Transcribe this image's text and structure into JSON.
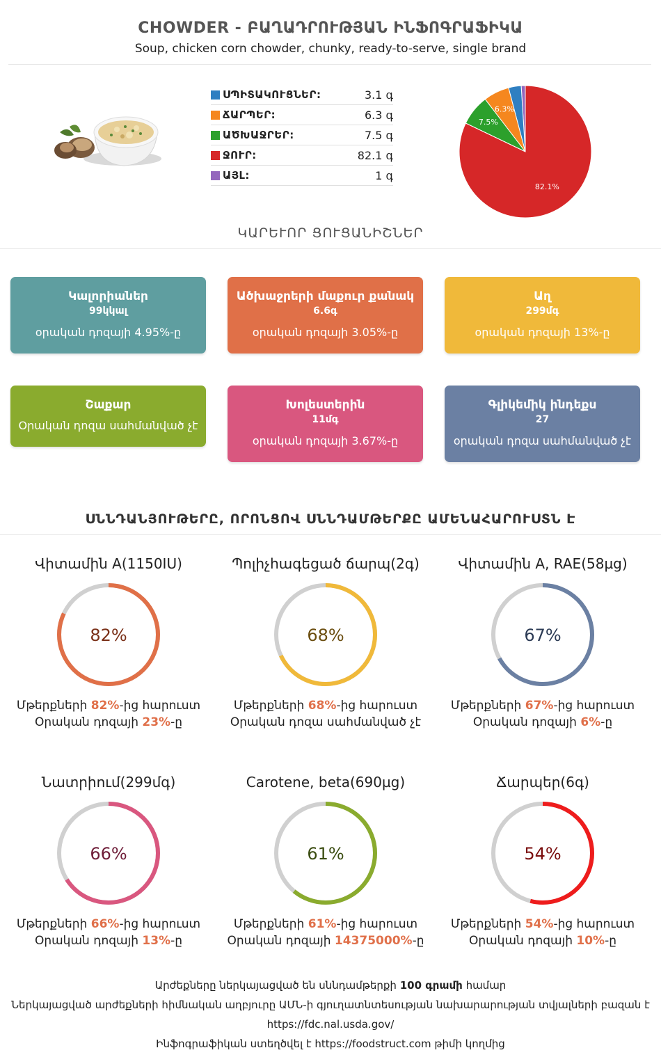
{
  "header": {
    "title": "CHOWDER - ԲԱՂԱԴՐՈՒԹՅԱՆ ԻՆՖՈԳՐԱՖԻԿԱ",
    "subtitle": "Soup, chicken corn chowder, chunky, ready-to-serve, single brand"
  },
  "composition": [
    {
      "label": "ՍՊԻՏԱԿՈՒՑՆԵՐ:",
      "value": "3.1 գ",
      "color": "#2f7fc1"
    },
    {
      "label": "ՃԱՐՊԵՐ:",
      "value": "6.3 գ",
      "color": "#f5871f"
    },
    {
      "label": "ԱԾԽԱՋՐԵՐ:",
      "value": "7.5 գ",
      "color": "#2ca02c"
    },
    {
      "label": "ՋՈՒՐ:",
      "value": "82.1 գ",
      "color": "#d62728"
    },
    {
      "label": "ԱՅԼ:",
      "value": "1 գ",
      "color": "#9467bd"
    }
  ],
  "chart_data": {
    "type": "pie",
    "slices": [
      {
        "name": "ՍՊԻՏԱԿՈՒՑՆԵՐ",
        "value": 3.1,
        "color": "#2f7fc1",
        "label": ""
      },
      {
        "name": "ՃԱՐՊԵՐ",
        "value": 6.3,
        "color": "#f5871f",
        "label": "6.3%"
      },
      {
        "name": "ԱԾԽԱՋՐԵՐ",
        "value": 7.5,
        "color": "#2ca02c",
        "label": "7.5%"
      },
      {
        "name": "ՋՈՒՐ",
        "value": 82.1,
        "color": "#d62728",
        "label": "82.1%"
      },
      {
        "name": "ԱՅԼ",
        "value": 1,
        "color": "#9467bd",
        "label": ""
      }
    ]
  },
  "key_indicators_title": "ԿԱՐԵՒՈՐ ՑՈՒՑԱՆԻՇՆԵՐ",
  "cards": [
    {
      "name": "Կալորիաներ",
      "value": "99կկալ",
      "dv": "օրական դոզայի 4.95%-ը",
      "color": "#5f9ea0"
    },
    {
      "name": "Ածխաջրերի մաքուր քանակ",
      "value": "6.6գ",
      "dv": "օրական դոզայի 3.05%-ը",
      "color": "#e07048"
    },
    {
      "name": "Աղ",
      "value": "299մգ",
      "dv": "օրական դոզայի 13%-ը",
      "color": "#f0b93a"
    },
    {
      "name": "Շաքար",
      "value": "",
      "dv": "Օրական դոզա սահմանված չէ",
      "color": "#8aab2e"
    },
    {
      "name": "Խոլեստերին",
      "value": "11մգ",
      "dv": "օրական դոզայի 3.67%-ը",
      "color": "#d9577f"
    },
    {
      "name": "Գլիկեմիկ ինդեքս",
      "value": "27",
      "dv": "օրական դոզա սահմանված չէ",
      "color": "#6b80a3"
    }
  ],
  "nutrients_title": "ՍՆՆԴԱՆՅՈՒԹԵՐԸ, ՈՐՈՆՑՈՎ ՍՆՆԴԱՄԹԵՐՔԸ ԱՄԵՆԱՀԱՐՈՒՍՏՆ Է",
  "nutrients": [
    {
      "name": "Վիտամին A(1150IU)",
      "percent": 82,
      "pct_text": "82%",
      "color": "#e07048",
      "text_color": "#7a3018",
      "l1_pre": "Մթերքների ",
      "l1_hl": "82%",
      "l1_post": "-ից հարուստ",
      "l2_pre": "Օրական դոզայի ",
      "l2_hl": "23%",
      "l2_post": "-ը"
    },
    {
      "name": "Պոլիչհագեցած ճարպ(2գ)",
      "percent": 68,
      "pct_text": "68%",
      "color": "#f0b93a",
      "text_color": "#6b4e10",
      "l1_pre": "Մթերքների ",
      "l1_hl": "68%",
      "l1_post": "-ից հարուստ",
      "l2_pre": "Օրական դոզա սահմանված չէ",
      "l2_hl": "",
      "l2_post": ""
    },
    {
      "name": "Վիտամին A, RAE(58µg)",
      "percent": 67,
      "pct_text": "67%",
      "color": "#6b80a3",
      "text_color": "#2c3b55",
      "l1_pre": "Մթերքների ",
      "l1_hl": "67%",
      "l1_post": "-ից հարուստ",
      "l2_pre": "Օրական դոզայի ",
      "l2_hl": "6%",
      "l2_post": "-ը"
    },
    {
      "name": "Նատրիում(299մգ)",
      "percent": 66,
      "pct_text": "66%",
      "color": "#d9577f",
      "text_color": "#6e1d38",
      "l1_pre": "Մթերքների ",
      "l1_hl": "66%",
      "l1_post": "-ից հարուստ",
      "l2_pre": "Օրական դոզայի ",
      "l2_hl": "13%",
      "l2_post": "-ը"
    },
    {
      "name": "Carotene, beta(690µg)",
      "percent": 61,
      "pct_text": "61%",
      "color": "#8aab2e",
      "text_color": "#3a4c10",
      "l1_pre": "Մթերքների ",
      "l1_hl": "61%",
      "l1_post": "-ից հարուստ",
      "l2_pre": "Օրական դոզայի ",
      "l2_hl": "14375000%",
      "l2_post": "-ը"
    },
    {
      "name": "Ճարպեր(6գ)",
      "percent": 54,
      "pct_text": "54%",
      "color": "#ee1c1c",
      "text_color": "#7a0e0e",
      "l1_pre": "Մթերքների ",
      "l1_hl": "54%",
      "l1_post": "-ից հարուստ",
      "l2_pre": "Օրական դոզայի ",
      "l2_hl": "10%",
      "l2_post": "-ը"
    }
  ],
  "footer": {
    "line1_pre": "Արժեքները ներկայացված են սննդամթերքի ",
    "line1_bold": "100 գրամի",
    "line1_post": " համար",
    "line2": "Ներկայացված արժեքների հիմնական աղբյուրը ԱՄՆ-ի գյուղատնտեսության նախարարության տվյալների բազան է",
    "line3": "https://fdc.nal.usda.gov/",
    "line4": "Ինֆոգրաֆիկան ստեղծվել է https://foodstruct.com թիմի կողմից"
  }
}
